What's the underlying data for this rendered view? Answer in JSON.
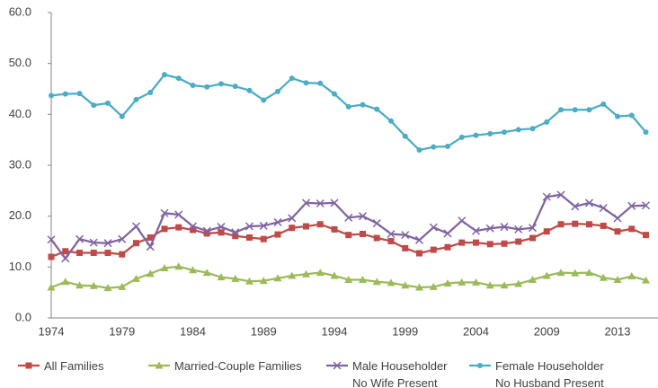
{
  "chart_data": {
    "type": "line",
    "categories": [
      "1974",
      null,
      null,
      null,
      null,
      "1979",
      null,
      null,
      null,
      null,
      "1984",
      null,
      null,
      null,
      null,
      "1989",
      null,
      null,
      null,
      null,
      "1994",
      null,
      null,
      null,
      null,
      "1999",
      null,
      null,
      null,
      null,
      "2004",
      null,
      null,
      null,
      null,
      "2009",
      null,
      null,
      null,
      null,
      "2013",
      null,
      null
    ],
    "ylim": [
      0,
      60
    ],
    "yticks": [
      {
        "value": 0,
        "label": "0.0"
      },
      {
        "value": 10,
        "label": "10.0"
      },
      {
        "value": 20,
        "label": "20.0"
      },
      {
        "value": 30,
        "label": "30.0"
      },
      {
        "value": 40,
        "label": "40.0"
      },
      {
        "value": 50,
        "label": "50.0"
      },
      {
        "value": 60,
        "label": "60.0"
      }
    ],
    "series": [
      {
        "name": "All Families",
        "color": "#be4b48",
        "marker": "square",
        "values": [
          12.0,
          13.1,
          12.8,
          12.8,
          12.8,
          12.5,
          14.7,
          15.8,
          17.5,
          17.8,
          17.3,
          16.6,
          16.8,
          16.1,
          15.8,
          15.5,
          16.4,
          17.7,
          18.0,
          18.4,
          17.4,
          16.3,
          16.5,
          15.7,
          15.1,
          13.7,
          12.7,
          13.4,
          13.9,
          14.8,
          14.8,
          14.5,
          14.6,
          15.0,
          15.7,
          17.0,
          18.4,
          18.5,
          18.4,
          18.1,
          17.0,
          17.5,
          16.3
        ]
      },
      {
        "name": "Married-Couple Families",
        "color": "#9bbb59",
        "marker": "triangle",
        "values": [
          6.0,
          7.1,
          6.4,
          6.3,
          5.9,
          6.1,
          7.7,
          8.7,
          9.8,
          10.1,
          9.4,
          8.9,
          8.0,
          7.7,
          7.2,
          7.3,
          7.8,
          8.3,
          8.6,
          8.9,
          8.3,
          7.5,
          7.5,
          7.1,
          6.9,
          6.4,
          6.0,
          6.1,
          6.8,
          7.0,
          7.0,
          6.4,
          6.4,
          6.7,
          7.5,
          8.3,
          8.9,
          8.8,
          8.9,
          7.9,
          7.5,
          8.2,
          7.4
        ]
      },
      {
        "name": "Male Householder\nNo Wife Present",
        "color": "#8064a2",
        "marker": "x",
        "values": [
          15.4,
          11.7,
          15.5,
          14.8,
          14.7,
          15.5,
          18.0,
          14.0,
          20.6,
          20.3,
          18.0,
          17.1,
          17.9,
          16.8,
          18.0,
          18.1,
          18.8,
          19.6,
          22.6,
          22.5,
          22.6,
          19.7,
          20.0,
          18.6,
          16.5,
          16.3,
          15.3,
          17.8,
          16.6,
          19.1,
          17.1,
          17.6,
          17.9,
          17.4,
          17.7,
          23.8,
          24.2,
          21.9,
          22.6,
          21.6,
          19.6,
          22.0,
          22.1
        ]
      },
      {
        "name": "Female Householder\nNo Husband Present",
        "color": "#4bacc6",
        "marker": "circle",
        "values": [
          43.7,
          44.0,
          44.1,
          41.8,
          42.2,
          39.6,
          42.9,
          44.3,
          47.8,
          47.1,
          45.7,
          45.4,
          46.0,
          45.5,
          44.7,
          42.8,
          44.5,
          47.1,
          46.2,
          46.1,
          44.0,
          41.5,
          41.9,
          41.0,
          38.7,
          35.7,
          33.0,
          33.6,
          33.7,
          35.5,
          35.9,
          36.2,
          36.5,
          37.0,
          37.2,
          38.5,
          40.9,
          40.9,
          40.9,
          42.0,
          39.6,
          39.8,
          36.5
        ]
      }
    ],
    "legend": "bottom"
  }
}
